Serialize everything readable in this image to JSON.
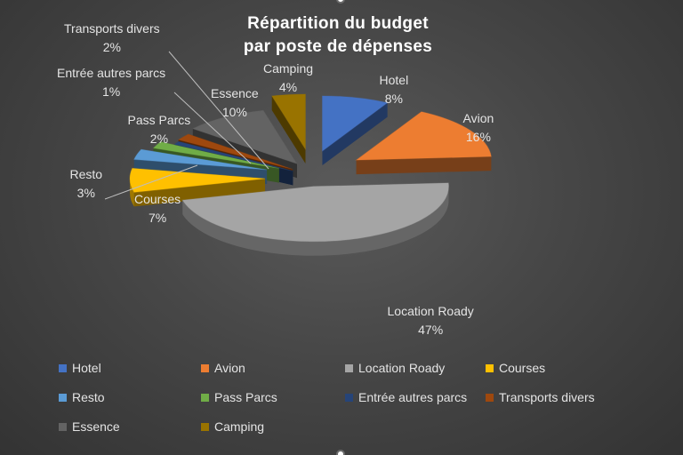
{
  "chart_data": {
    "type": "pie",
    "style": "3d-exploded",
    "title": "Répartition du budget par poste de dépenses",
    "title_lines": [
      "Répartition du budget",
      "par poste de dépenses"
    ],
    "categories": [
      "Hotel",
      "Avion",
      "Location Roady",
      "Courses",
      "Resto",
      "Pass Parcs",
      "Entrée autres parcs",
      "Transports divers",
      "Essence",
      "Camping"
    ],
    "values": [
      8,
      16,
      47,
      7,
      3,
      2,
      1,
      2,
      10,
      4
    ],
    "value_labels": [
      "8%",
      "16%",
      "47%",
      "7%",
      "3%",
      "2%",
      "1%",
      "2%",
      "10%",
      "4%"
    ],
    "colors": [
      "#4472C4",
      "#ED7D31",
      "#A5A5A5",
      "#FFC000",
      "#5B9BD5",
      "#70AD47",
      "#264478",
      "#9E480E",
      "#636363",
      "#997300"
    ],
    "legend_position": "bottom"
  }
}
